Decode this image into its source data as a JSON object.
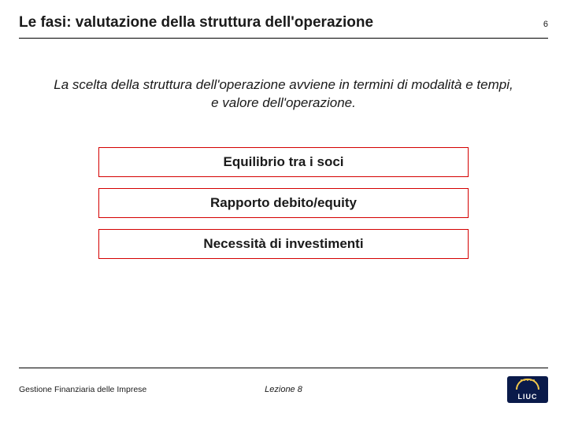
{
  "header": {
    "title": "Le fasi: valutazione della struttura dell'operazione",
    "page_number": "6",
    "rule_color": "#000000"
  },
  "subtitle": "La scelta della struttura dell'operazione avviene in termini di modalità e tempi, e valore dell'operazione.",
  "boxes": [
    {
      "label": "Equilibrio tra i soci",
      "border_color": "#d40000",
      "text_color": "#1a1a1a"
    },
    {
      "label": "Rapporto debito/equity",
      "border_color": "#d40000",
      "text_color": "#1a1a1a"
    },
    {
      "label": "Necessità di investimenti",
      "border_color": "#d40000",
      "text_color": "#1a1a1a"
    }
  ],
  "footer": {
    "left": "Gestione Finanziaria delle Imprese",
    "center": "Lezione 8",
    "logo_text": "LIUC",
    "logo_bg": "#0a1a4a",
    "logo_accent": "#f2c84b"
  },
  "colors": {
    "background": "#ffffff",
    "text": "#1a1a1a"
  }
}
